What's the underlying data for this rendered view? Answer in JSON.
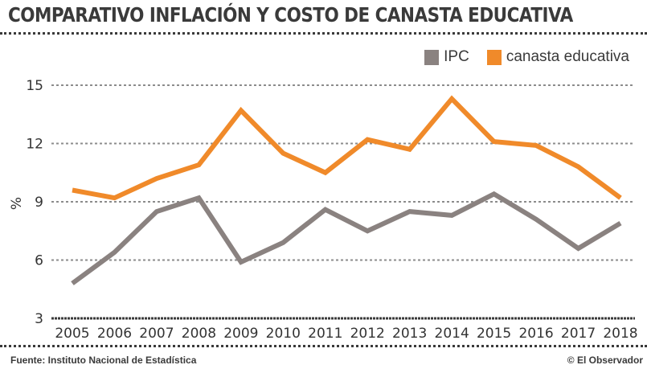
{
  "header": {
    "title": "COMPARATIVO INFLACIÓN Y COSTO DE CANASTA EDUCATIVA"
  },
  "footer": {
    "source": "Fuente: Instituto Nacional de Estadística",
    "credit": "© El Observador"
  },
  "colors": {
    "ipc": "#8a8280",
    "canasta": "#f08a2a",
    "text": "#3a3a3a",
    "grid": "#8c8c8c"
  },
  "chart_data": {
    "type": "line",
    "title": "COMPARATIVO INFLACIÓN Y COSTO DE CANASTA EDUCATIVA",
    "xlabel": "",
    "ylabel": "%",
    "x": [
      "2005",
      "2006",
      "2007",
      "2008",
      "2009",
      "2010",
      "2011",
      "2012",
      "2013",
      "2014",
      "2015",
      "2016",
      "2017",
      "2018"
    ],
    "ylim": [
      3,
      15
    ],
    "yticks": [
      3,
      6,
      9,
      12,
      15
    ],
    "grid": true,
    "legend_position": "top-right",
    "series": [
      {
        "name": "IPC",
        "color": "#8a8280",
        "values": [
          4.8,
          6.4,
          8.5,
          9.2,
          5.9,
          6.9,
          8.6,
          7.5,
          8.5,
          8.3,
          9.4,
          8.1,
          6.6,
          7.9
        ]
      },
      {
        "name": "canasta educativa",
        "color": "#f08a2a",
        "values": [
          9.6,
          9.2,
          10.2,
          10.9,
          13.7,
          11.5,
          10.5,
          12.2,
          11.7,
          14.3,
          12.1,
          11.9,
          10.8,
          9.2
        ]
      }
    ]
  }
}
